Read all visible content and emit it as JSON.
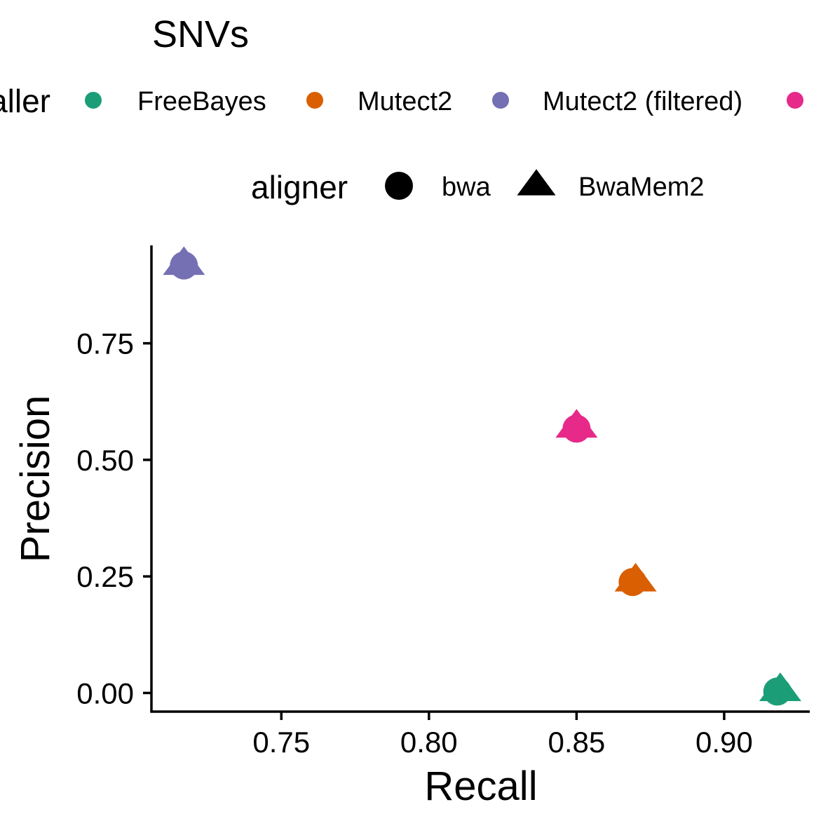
{
  "chart_data": {
    "type": "scatter",
    "title": "SNVs",
    "xlabel": "Recall",
    "ylabel": "Precision",
    "xlim": [
      0.706,
      0.929
    ],
    "ylim": [
      -0.04,
      0.96
    ],
    "x_ticks": [
      0.75,
      0.8,
      0.85,
      0.9
    ],
    "x_tick_labels": [
      "0.75",
      "0.80",
      "0.85",
      "0.90"
    ],
    "y_ticks": [
      0.0,
      0.25,
      0.5,
      0.75
    ],
    "y_tick_labels": [
      "0.00",
      "0.25",
      "0.50",
      "0.75"
    ],
    "grid": false,
    "legend_position": "top",
    "color_legend": {
      "title": "caller",
      "visible_title_fragment": "aller",
      "entries": [
        {
          "label": "FreeBayes",
          "color": "#1b9e77"
        },
        {
          "label": "Mutect2",
          "color": "#d95f02"
        },
        {
          "label": "Mutect2 (filtered)",
          "color": "#7570b3"
        },
        {
          "label": "",
          "color": "#e7298a"
        }
      ]
    },
    "shape_legend": {
      "title": "aligner",
      "entries": [
        {
          "label": "bwa",
          "shape": "circle"
        },
        {
          "label": "BwaMem2",
          "shape": "triangle"
        }
      ]
    },
    "series": [
      {
        "caller_index": 0,
        "points": [
          {
            "aligner": "bwa",
            "x": 0.918,
            "y": 0.003
          },
          {
            "aligner": "BwaMem2",
            "x": 0.919,
            "y": 0.005
          }
        ]
      },
      {
        "caller_index": 1,
        "points": [
          {
            "aligner": "bwa",
            "x": 0.869,
            "y": 0.238
          },
          {
            "aligner": "BwaMem2",
            "x": 0.87,
            "y": 0.24
          }
        ]
      },
      {
        "caller_index": 2,
        "points": [
          {
            "aligner": "bwa",
            "x": 0.717,
            "y": 0.917
          },
          {
            "aligner": "BwaMem2",
            "x": 0.717,
            "y": 0.919
          }
        ]
      },
      {
        "caller_index": 3,
        "points": [
          {
            "aligner": "bwa",
            "x": 0.85,
            "y": 0.567
          },
          {
            "aligner": "BwaMem2",
            "x": 0.85,
            "y": 0.57
          }
        ]
      }
    ]
  }
}
